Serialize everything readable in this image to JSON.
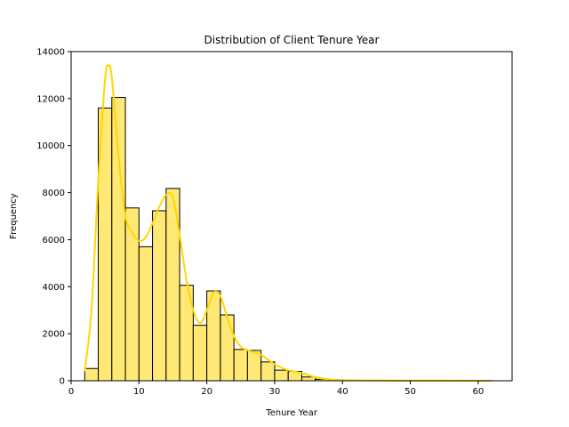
{
  "chart_data": {
    "type": "bar",
    "title": "Distribution of Client Tenure Year",
    "xlabel": "Tenure Year",
    "ylabel": "Frequency",
    "xlim": [
      0,
      65
    ],
    "ylim": [
      0,
      14000
    ],
    "x_ticks": [
      0,
      10,
      20,
      30,
      40,
      50,
      60
    ],
    "y_ticks": [
      0,
      2000,
      4000,
      6000,
      8000,
      10000,
      12000,
      14000
    ],
    "grid": false,
    "bar_color": "#FFE873",
    "bar_edge_color": "#000000",
    "kde_color": "#FFD700",
    "bin_edges": [
      2,
      4,
      6,
      8,
      10,
      12,
      14,
      16,
      18,
      20,
      22,
      24,
      26,
      28,
      30,
      32,
      34,
      36,
      38,
      40,
      42,
      44,
      46,
      48,
      50,
      52,
      54,
      56,
      58,
      60,
      62
    ],
    "values": [
      520,
      11600,
      12050,
      7350,
      5700,
      7230,
      8180,
      4060,
      2360,
      3820,
      2800,
      1330,
      1290,
      800,
      450,
      400,
      160,
      60,
      30,
      15,
      10,
      5,
      5,
      3,
      2,
      2,
      1,
      1,
      1,
      1
    ],
    "kde": {
      "x": [
        2,
        3,
        4,
        5,
        5.5,
        6,
        7,
        8,
        9,
        10,
        11,
        12,
        13,
        14,
        15,
        16,
        17,
        18,
        19,
        20,
        21,
        22,
        23,
        24,
        25,
        26,
        28,
        30,
        32,
        34,
        36,
        38,
        40,
        45,
        50,
        55,
        62
      ],
      "y": [
        400,
        3000,
        8500,
        12800,
        13400,
        12900,
        9500,
        7000,
        6300,
        5950,
        6100,
        6700,
        7400,
        7900,
        7800,
        6200,
        4300,
        3000,
        2450,
        3000,
        3750,
        3600,
        2700,
        1900,
        1450,
        1300,
        1100,
        700,
        450,
        330,
        150,
        60,
        30,
        10,
        5,
        3,
        1
      ]
    }
  }
}
